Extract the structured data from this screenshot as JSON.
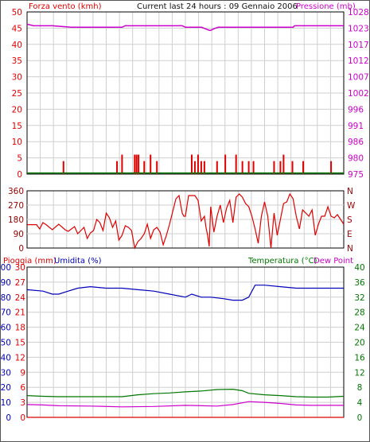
{
  "colors": {
    "red": "#e00000",
    "magenta": "#cc00cc",
    "blue": "#0000bb",
    "green": "#007700",
    "grid": "#cfcfcf",
    "dark_red": "#990000"
  },
  "header": {
    "wind_speed_label": "Forza vento (kmh)",
    "title": "Current last 24 hours : 09 Gennaio 2006",
    "pressure_label": "Pressione (mb)"
  },
  "panel2": {
    "direction_labels": [
      "N",
      "W",
      "S",
      "E",
      "N"
    ]
  },
  "panel3_header": {
    "rain_label": "Pioggia (mm)",
    "humidity_label": "Umidita (%)",
    "temperature_label": "Temperatura (°C)",
    "dewpoint_label": "Dew Point"
  },
  "chart_data": [
    {
      "type": "line",
      "title": "Current last 24 hours : 09 Gennaio 2006",
      "grid": true,
      "x_divisions": 24,
      "axes": {
        "left": {
          "label": "Forza vento (kmh)",
          "ylim": [
            0,
            50
          ],
          "ticks": [
            "0",
            "5",
            "10",
            "15",
            "20",
            "25",
            "30",
            "35",
            "40",
            "45",
            "50"
          ]
        },
        "right": {
          "label": "Pressione (mb)",
          "ylim": [
            975,
            1028
          ],
          "ticks": [
            "975",
            "980",
            "986",
            "991",
            "996",
            "1002",
            "1007",
            "1012",
            "1017",
            "1023",
            "1028"
          ]
        }
      },
      "series": [
        {
          "name": "Forza vento (kmh)",
          "axis": "left",
          "kind": "spike",
          "color": "#e00000",
          "values": [
            [
              0.115,
              4
            ],
            [
              0.284,
              4
            ],
            [
              0.3,
              6
            ],
            [
              0.34,
              6
            ],
            [
              0.346,
              6
            ],
            [
              0.352,
              6
            ],
            [
              0.37,
              4
            ],
            [
              0.39,
              6
            ],
            [
              0.41,
              4
            ],
            [
              0.52,
              6
            ],
            [
              0.53,
              4
            ],
            [
              0.54,
              6
            ],
            [
              0.55,
              4
            ],
            [
              0.56,
              4
            ],
            [
              0.6,
              4
            ],
            [
              0.626,
              6
            ],
            [
              0.66,
              6
            ],
            [
              0.68,
              4
            ],
            [
              0.7,
              4
            ],
            [
              0.715,
              4
            ],
            [
              0.78,
              4
            ],
            [
              0.8,
              4
            ],
            [
              0.81,
              6
            ],
            [
              0.838,
              4
            ],
            [
              0.872,
              4
            ],
            [
              0.96,
              4
            ]
          ]
        },
        {
          "name": "",
          "axis": "left",
          "kind": "flat",
          "color": "#007700",
          "values": [
            [
              0,
              0.1
            ],
            [
              1,
              0.1
            ]
          ]
        },
        {
          "name": "Pressione (mb)",
          "axis": "right",
          "kind": "step",
          "color": "#cc00cc",
          "values": [
            [
              0,
              1024
            ],
            [
              0.02,
              1023.5
            ],
            [
              0.08,
              1023.5
            ],
            [
              0.14,
              1023
            ],
            [
              0.3,
              1023
            ],
            [
              0.31,
              1023.5
            ],
            [
              0.49,
              1023.5
            ],
            [
              0.5,
              1023
            ],
            [
              0.5,
              1023
            ],
            [
              0.551,
              1023
            ],
            [
              0.563,
              1022.5
            ],
            [
              0.575,
              1022
            ],
            [
              0.58,
              1022
            ],
            [
              0.59,
              1022.5
            ],
            [
              0.604,
              1023
            ],
            [
              0.84,
              1023
            ],
            [
              0.845,
              1023.5
            ],
            [
              1,
              1023.5
            ]
          ]
        }
      ]
    },
    {
      "type": "scatter",
      "grid": true,
      "x_divisions": 24,
      "axes": {
        "left": {
          "ylim": [
            0,
            360
          ],
          "ticks": [
            "0",
            "90",
            "180",
            "270",
            "360"
          ]
        },
        "right": {
          "ylim": [
            0,
            360
          ],
          "ticks": [
            "N",
            "W",
            "S",
            "E",
            "N"
          ]
        }
      },
      "series": [
        {
          "name": "",
          "axis": "left",
          "kind": "line",
          "color": "#e00000",
          "values": [
            [
              0,
              147
            ],
            [
              0.03,
              147
            ],
            [
              0.04,
              120
            ],
            [
              0.05,
              160
            ],
            [
              0.06,
              147
            ],
            [
              0.08,
              115
            ],
            [
              0.1,
              150
            ],
            [
              0.12,
              115
            ],
            [
              0.13,
              105
            ],
            [
              0.15,
              135
            ],
            [
              0.16,
              90
            ],
            [
              0.18,
              130
            ],
            [
              0.19,
              60
            ],
            [
              0.2,
              95
            ],
            [
              0.21,
              110
            ],
            [
              0.22,
              180
            ],
            [
              0.23,
              160
            ],
            [
              0.24,
              110
            ],
            [
              0.25,
              220
            ],
            [
              0.26,
              190
            ],
            [
              0.27,
              130
            ],
            [
              0.28,
              170
            ],
            [
              0.29,
              50
            ],
            [
              0.3,
              80
            ],
            [
              0.31,
              140
            ],
            [
              0.32,
              130
            ],
            [
              0.33,
              110
            ],
            [
              0.34,
              0
            ],
            [
              0.35,
              40
            ],
            [
              0.36,
              60
            ],
            [
              0.37,
              90
            ],
            [
              0.38,
              150
            ],
            [
              0.39,
              60
            ],
            [
              0.4,
              115
            ],
            [
              0.41,
              130
            ],
            [
              0.42,
              100
            ],
            [
              0.43,
              20
            ],
            [
              0.44,
              80
            ],
            [
              0.45,
              150
            ],
            [
              0.46,
              230
            ],
            [
              0.47,
              310
            ],
            [
              0.48,
              330
            ],
            [
              0.49,
              220
            ],
            [
              0.495,
              200
            ],
            [
              0.5,
              200
            ],
            [
              0.51,
              330
            ],
            [
              0.52,
              330
            ],
            [
              0.53,
              330
            ],
            [
              0.54,
              300
            ],
            [
              0.55,
              170
            ],
            [
              0.56,
              200
            ],
            [
              0.565,
              130
            ],
            [
              0.57,
              80
            ],
            [
              0.575,
              10
            ],
            [
              0.58,
              260
            ],
            [
              0.59,
              100
            ],
            [
              0.6,
              200
            ],
            [
              0.61,
              270
            ],
            [
              0.62,
              160
            ],
            [
              0.63,
              250
            ],
            [
              0.64,
              300
            ],
            [
              0.65,
              160
            ],
            [
              0.66,
              320
            ],
            [
              0.67,
              340
            ],
            [
              0.68,
              320
            ],
            [
              0.69,
              280
            ],
            [
              0.7,
              260
            ],
            [
              0.71,
              200
            ],
            [
              0.72,
              120
            ],
            [
              0.73,
              30
            ],
            [
              0.74,
              200
            ],
            [
              0.75,
              290
            ],
            [
              0.76,
              200
            ],
            [
              0.77,
              0
            ],
            [
              0.78,
              220
            ],
            [
              0.79,
              80
            ],
            [
              0.8,
              180
            ],
            [
              0.81,
              280
            ],
            [
              0.82,
              290
            ],
            [
              0.83,
              340
            ],
            [
              0.84,
              310
            ],
            [
              0.85,
              200
            ],
            [
              0.86,
              120
            ],
            [
              0.87,
              240
            ],
            [
              0.88,
              220
            ],
            [
              0.89,
              200
            ],
            [
              0.9,
              240
            ],
            [
              0.91,
              80
            ],
            [
              0.92,
              150
            ],
            [
              0.93,
              200
            ],
            [
              0.94,
              200
            ],
            [
              0.95,
              260
            ],
            [
              0.96,
              200
            ],
            [
              0.97,
              190
            ],
            [
              0.98,
              210
            ],
            [
              0.99,
              180
            ],
            [
              1,
              150
            ]
          ]
        }
      ]
    },
    {
      "type": "line",
      "grid": true,
      "x_divisions": 24,
      "axes": {
        "left_outer": {
          "label": "Umidita (%)",
          "ylim": [
            0,
            100
          ],
          "ticks": [
            "0",
            "10",
            "20",
            "30",
            "40",
            "50",
            "60",
            "70",
            "80",
            "90",
            "100"
          ]
        },
        "left_inner": {
          "label": "Pioggia (mm)",
          "ylim": [
            0,
            30
          ],
          "ticks": [
            "0",
            "3",
            "6",
            "9",
            "12",
            "15",
            "18",
            "21",
            "24",
            "27",
            "30"
          ]
        },
        "right": {
          "label": "Temperatura (°C)",
          "ylim": [
            0,
            40
          ],
          "ticks": [
            "0",
            "4",
            "8",
            "12",
            "16",
            "20",
            "24",
            "28",
            "32",
            "36",
            "40"
          ]
        }
      },
      "series": [
        {
          "name": "Umidita (%)",
          "axis": "left_outer",
          "color": "#0000bb",
          "values": [
            [
              0,
              85
            ],
            [
              0.05,
              84
            ],
            [
              0.08,
              82
            ],
            [
              0.1,
              82
            ],
            [
              0.13,
              84
            ],
            [
              0.16,
              86
            ],
            [
              0.2,
              87
            ],
            [
              0.25,
              86
            ],
            [
              0.3,
              86
            ],
            [
              0.35,
              85
            ],
            [
              0.4,
              84
            ],
            [
              0.45,
              82
            ],
            [
              0.5,
              80
            ],
            [
              0.52,
              82
            ],
            [
              0.55,
              80
            ],
            [
              0.58,
              80
            ],
            [
              0.62,
              79
            ],
            [
              0.65,
              78
            ],
            [
              0.68,
              78
            ],
            [
              0.7,
              80
            ],
            [
              0.72,
              88
            ],
            [
              0.75,
              88
            ],
            [
              0.8,
              87
            ],
            [
              0.85,
              86
            ],
            [
              0.9,
              86
            ],
            [
              0.95,
              86
            ],
            [
              1,
              86
            ]
          ]
        },
        {
          "name": "Temperatura (°C)",
          "axis": "right",
          "color": "#007700",
          "values": [
            [
              0,
              5.8
            ],
            [
              0.05,
              5.6
            ],
            [
              0.1,
              5.5
            ],
            [
              0.2,
              5.5
            ],
            [
              0.3,
              5.5
            ],
            [
              0.35,
              6.0
            ],
            [
              0.4,
              6.3
            ],
            [
              0.45,
              6.5
            ],
            [
              0.5,
              6.8
            ],
            [
              0.55,
              7.0
            ],
            [
              0.6,
              7.4
            ],
            [
              0.65,
              7.5
            ],
            [
              0.68,
              7.1
            ],
            [
              0.7,
              6.4
            ],
            [
              0.75,
              6.0
            ],
            [
              0.8,
              5.8
            ],
            [
              0.85,
              5.5
            ],
            [
              0.9,
              5.4
            ],
            [
              0.95,
              5.4
            ],
            [
              1,
              5.6
            ]
          ]
        },
        {
          "name": "Dew Point",
          "axis": "right",
          "color": "#cc00cc",
          "values": [
            [
              0,
              3.4
            ],
            [
              0.05,
              3.3
            ],
            [
              0.1,
              3.1
            ],
            [
              0.2,
              3.0
            ],
            [
              0.3,
              2.8
            ],
            [
              0.4,
              2.9
            ],
            [
              0.5,
              3.2
            ],
            [
              0.6,
              3.0
            ],
            [
              0.65,
              3.4
            ],
            [
              0.7,
              4.2
            ],
            [
              0.75,
              4.0
            ],
            [
              0.8,
              3.7
            ],
            [
              0.85,
              3.3
            ],
            [
              0.9,
              3.2
            ],
            [
              0.95,
              3.2
            ],
            [
              1,
              3.2
            ]
          ]
        },
        {
          "name": "Pioggia (mm)",
          "axis": "left_inner",
          "color": "#e00000",
          "values": [
            [
              0,
              0
            ],
            [
              1,
              0
            ]
          ]
        }
      ]
    }
  ]
}
